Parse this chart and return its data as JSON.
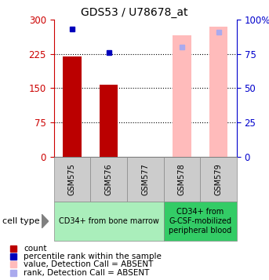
{
  "title": "GDS53 / U78678_at",
  "samples": [
    "GSM575",
    "GSM576",
    "GSM577",
    "GSM578",
    "GSM579"
  ],
  "bar_values": [
    220,
    157,
    0,
    265,
    285
  ],
  "bar_colors": [
    "#bb0000",
    "#bb0000",
    null,
    "#ffbbbb",
    "#ffbbbb"
  ],
  "dot_values": [
    93,
    76,
    0,
    80,
    91
  ],
  "dot_colors": [
    "#0000bb",
    "#0000bb",
    null,
    "#aaaaee",
    "#aaaaee"
  ],
  "absent": [
    false,
    false,
    true,
    true,
    true
  ],
  "group1_label": "CD34+ from bone marrow",
  "group2_label": "CD34+ from\nG-CSF-mobilized\nperipheral blood",
  "group1_color": "#aaeebb",
  "group2_color": "#33cc66",
  "sample_box_color": "#cccccc",
  "left_yticks": [
    0,
    75,
    150,
    225,
    300
  ],
  "right_yticks": [
    0,
    25,
    50,
    75,
    100
  ],
  "ylim_left": [
    0,
    300
  ],
  "ylim_right": [
    0,
    100
  ],
  "left_ycolor": "#cc0000",
  "right_ycolor": "#0000cc",
  "dotted_lines": [
    75,
    150,
    225
  ],
  "legend_items": [
    {
      "label": "count",
      "color": "#bb0000"
    },
    {
      "label": "percentile rank within the sample",
      "color": "#0000bb"
    },
    {
      "label": "value, Detection Call = ABSENT",
      "color": "#ffbbbb"
    },
    {
      "label": "rank, Detection Call = ABSENT",
      "color": "#aaaaee"
    }
  ],
  "cell_type_label": "cell type",
  "bar_width": 0.5,
  "figsize": [
    3.43,
    3.57
  ],
  "dpi": 100
}
